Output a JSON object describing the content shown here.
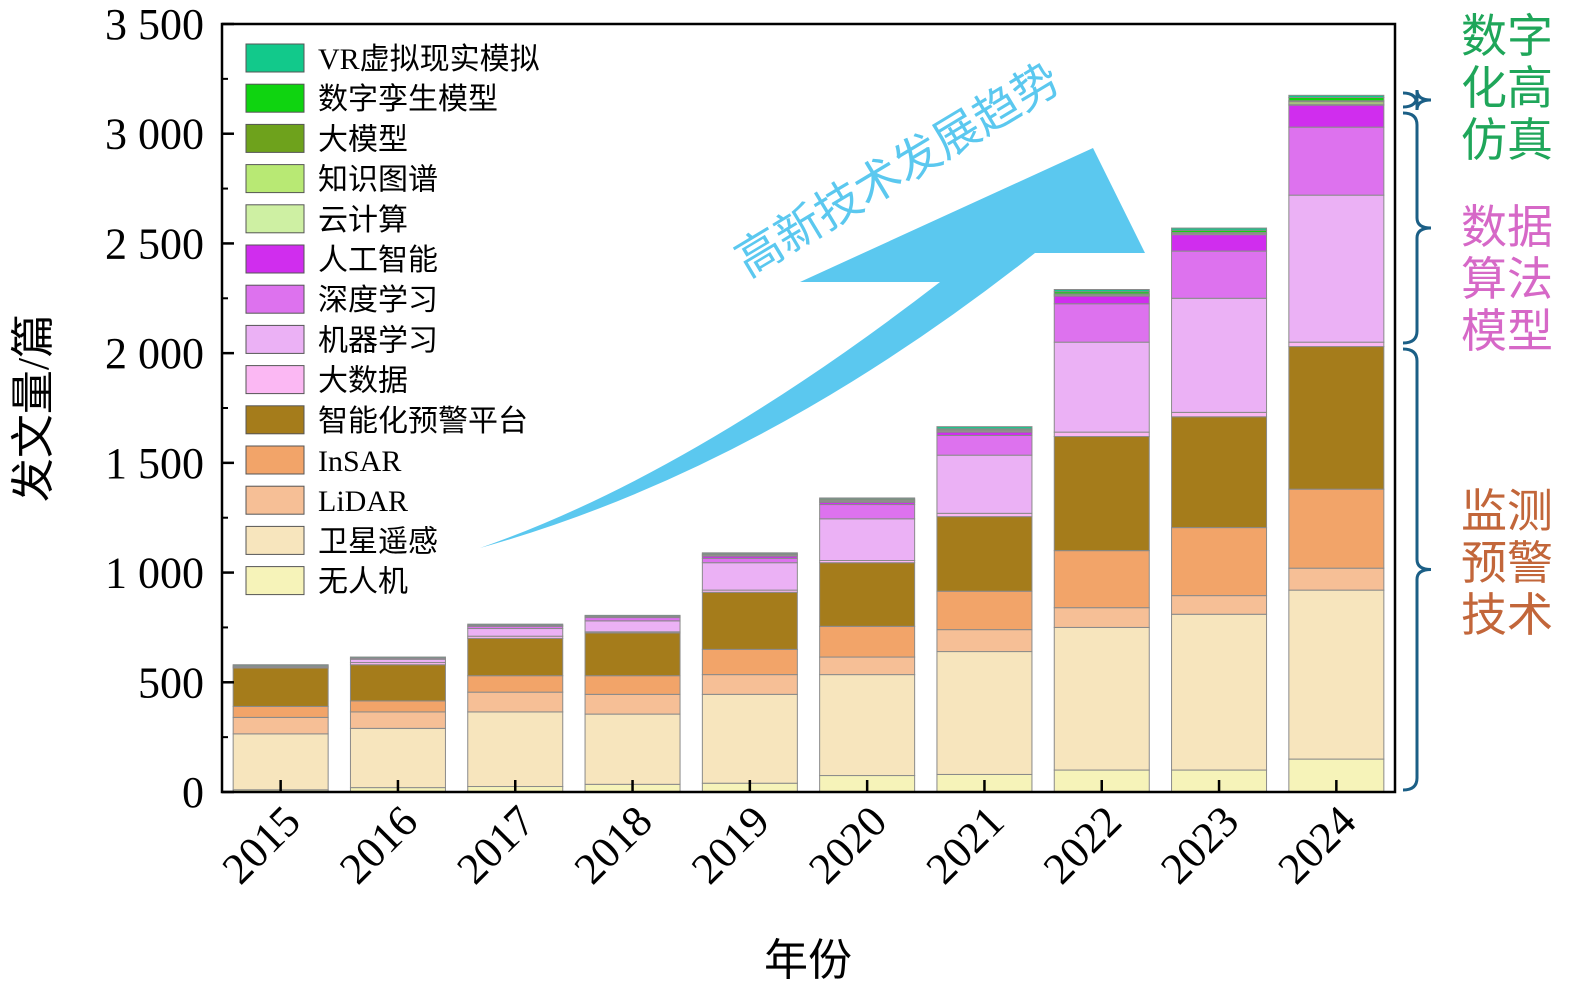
{
  "chart_data": {
    "type": "bar",
    "stacked": true,
    "xlabel": "年份",
    "ylabel": "发文量/篇",
    "ylim": [
      0,
      3500
    ],
    "yticks": [
      0,
      500,
      1000,
      1500,
      2000,
      2500,
      3000,
      3500
    ],
    "ytick_labels": [
      "0",
      "500",
      "1 000",
      "1 500",
      "2 000",
      "2 500",
      "3 000",
      "3 500"
    ],
    "categories": [
      "2015",
      "2016",
      "2017",
      "2018",
      "2019",
      "2020",
      "2021",
      "2022",
      "2023",
      "2024"
    ],
    "legend_position": "top-left",
    "series": [
      {
        "name": "无人机",
        "color": "#f6f3b9",
        "values": [
          10,
          20,
          25,
          35,
          40,
          75,
          80,
          100,
          100,
          150
        ]
      },
      {
        "name": "卫星遥感",
        "color": "#f7e5bd",
        "values": [
          255,
          270,
          340,
          320,
          405,
          460,
          560,
          650,
          710,
          770
        ]
      },
      {
        "name": "LiDAR",
        "color": "#f6bf96",
        "values": [
          75,
          75,
          90,
          90,
          90,
          80,
          100,
          90,
          85,
          100
        ]
      },
      {
        "name": "InSAR",
        "color": "#f2a469",
        "values": [
          50,
          50,
          75,
          85,
          115,
          140,
          175,
          260,
          310,
          360
        ]
      },
      {
        "name": "智能化预警平台",
        "color": "#a57c1b",
        "values": [
          175,
          165,
          170,
          195,
          260,
          290,
          340,
          520,
          505,
          650
        ]
      },
      {
        "name": "大数据",
        "color": "#fbb8f3",
        "values": [
          5,
          10,
          10,
          5,
          10,
          10,
          15,
          20,
          20,
          20
        ]
      },
      {
        "name": "机器学习",
        "color": "#ebb1f5",
        "values": [
          5,
          15,
          35,
          50,
          125,
          190,
          265,
          410,
          520,
          670
        ]
      },
      {
        "name": "深度学习",
        "color": "#dd72ee",
        "values": [
          0,
          5,
          10,
          15,
          20,
          65,
          90,
          175,
          215,
          310
        ]
      },
      {
        "name": "人工智能",
        "color": "#d02dee",
        "values": [
          0,
          0,
          5,
          5,
          10,
          10,
          15,
          35,
          75,
          100
        ]
      },
      {
        "name": "云计算",
        "color": "#cef0a3",
        "values": [
          0,
          0,
          0,
          0,
          5,
          5,
          5,
          5,
          5,
          5
        ]
      },
      {
        "name": "知识图谱",
        "color": "#b8e974",
        "values": [
          0,
          0,
          0,
          0,
          0,
          5,
          5,
          5,
          5,
          10
        ]
      },
      {
        "name": "大模型",
        "color": "#6ea21c",
        "values": [
          0,
          0,
          0,
          0,
          0,
          0,
          0,
          0,
          0,
          5
        ]
      },
      {
        "name": "数字孪生模型",
        "color": "#0fd410",
        "values": [
          0,
          0,
          0,
          0,
          5,
          5,
          5,
          10,
          10,
          15
        ]
      },
      {
        "name": "VR虚拟现实模拟",
        "color": "#12c98b",
        "values": [
          5,
          5,
          5,
          5,
          5,
          5,
          10,
          10,
          10,
          10
        ]
      }
    ],
    "annotations": {
      "arrow_text": "高新技术发展趋势",
      "groups": [
        {
          "lines": [
            "数字",
            "化高",
            "仿真"
          ],
          "color": "#1fa65a"
        },
        {
          "lines": [
            "数据",
            "算法",
            "模型"
          ],
          "color": "#d668c7"
        },
        {
          "lines": [
            "监测",
            "预警",
            "技术"
          ],
          "color": "#c2663a"
        }
      ],
      "bracket_color": "#1b5f86"
    }
  }
}
